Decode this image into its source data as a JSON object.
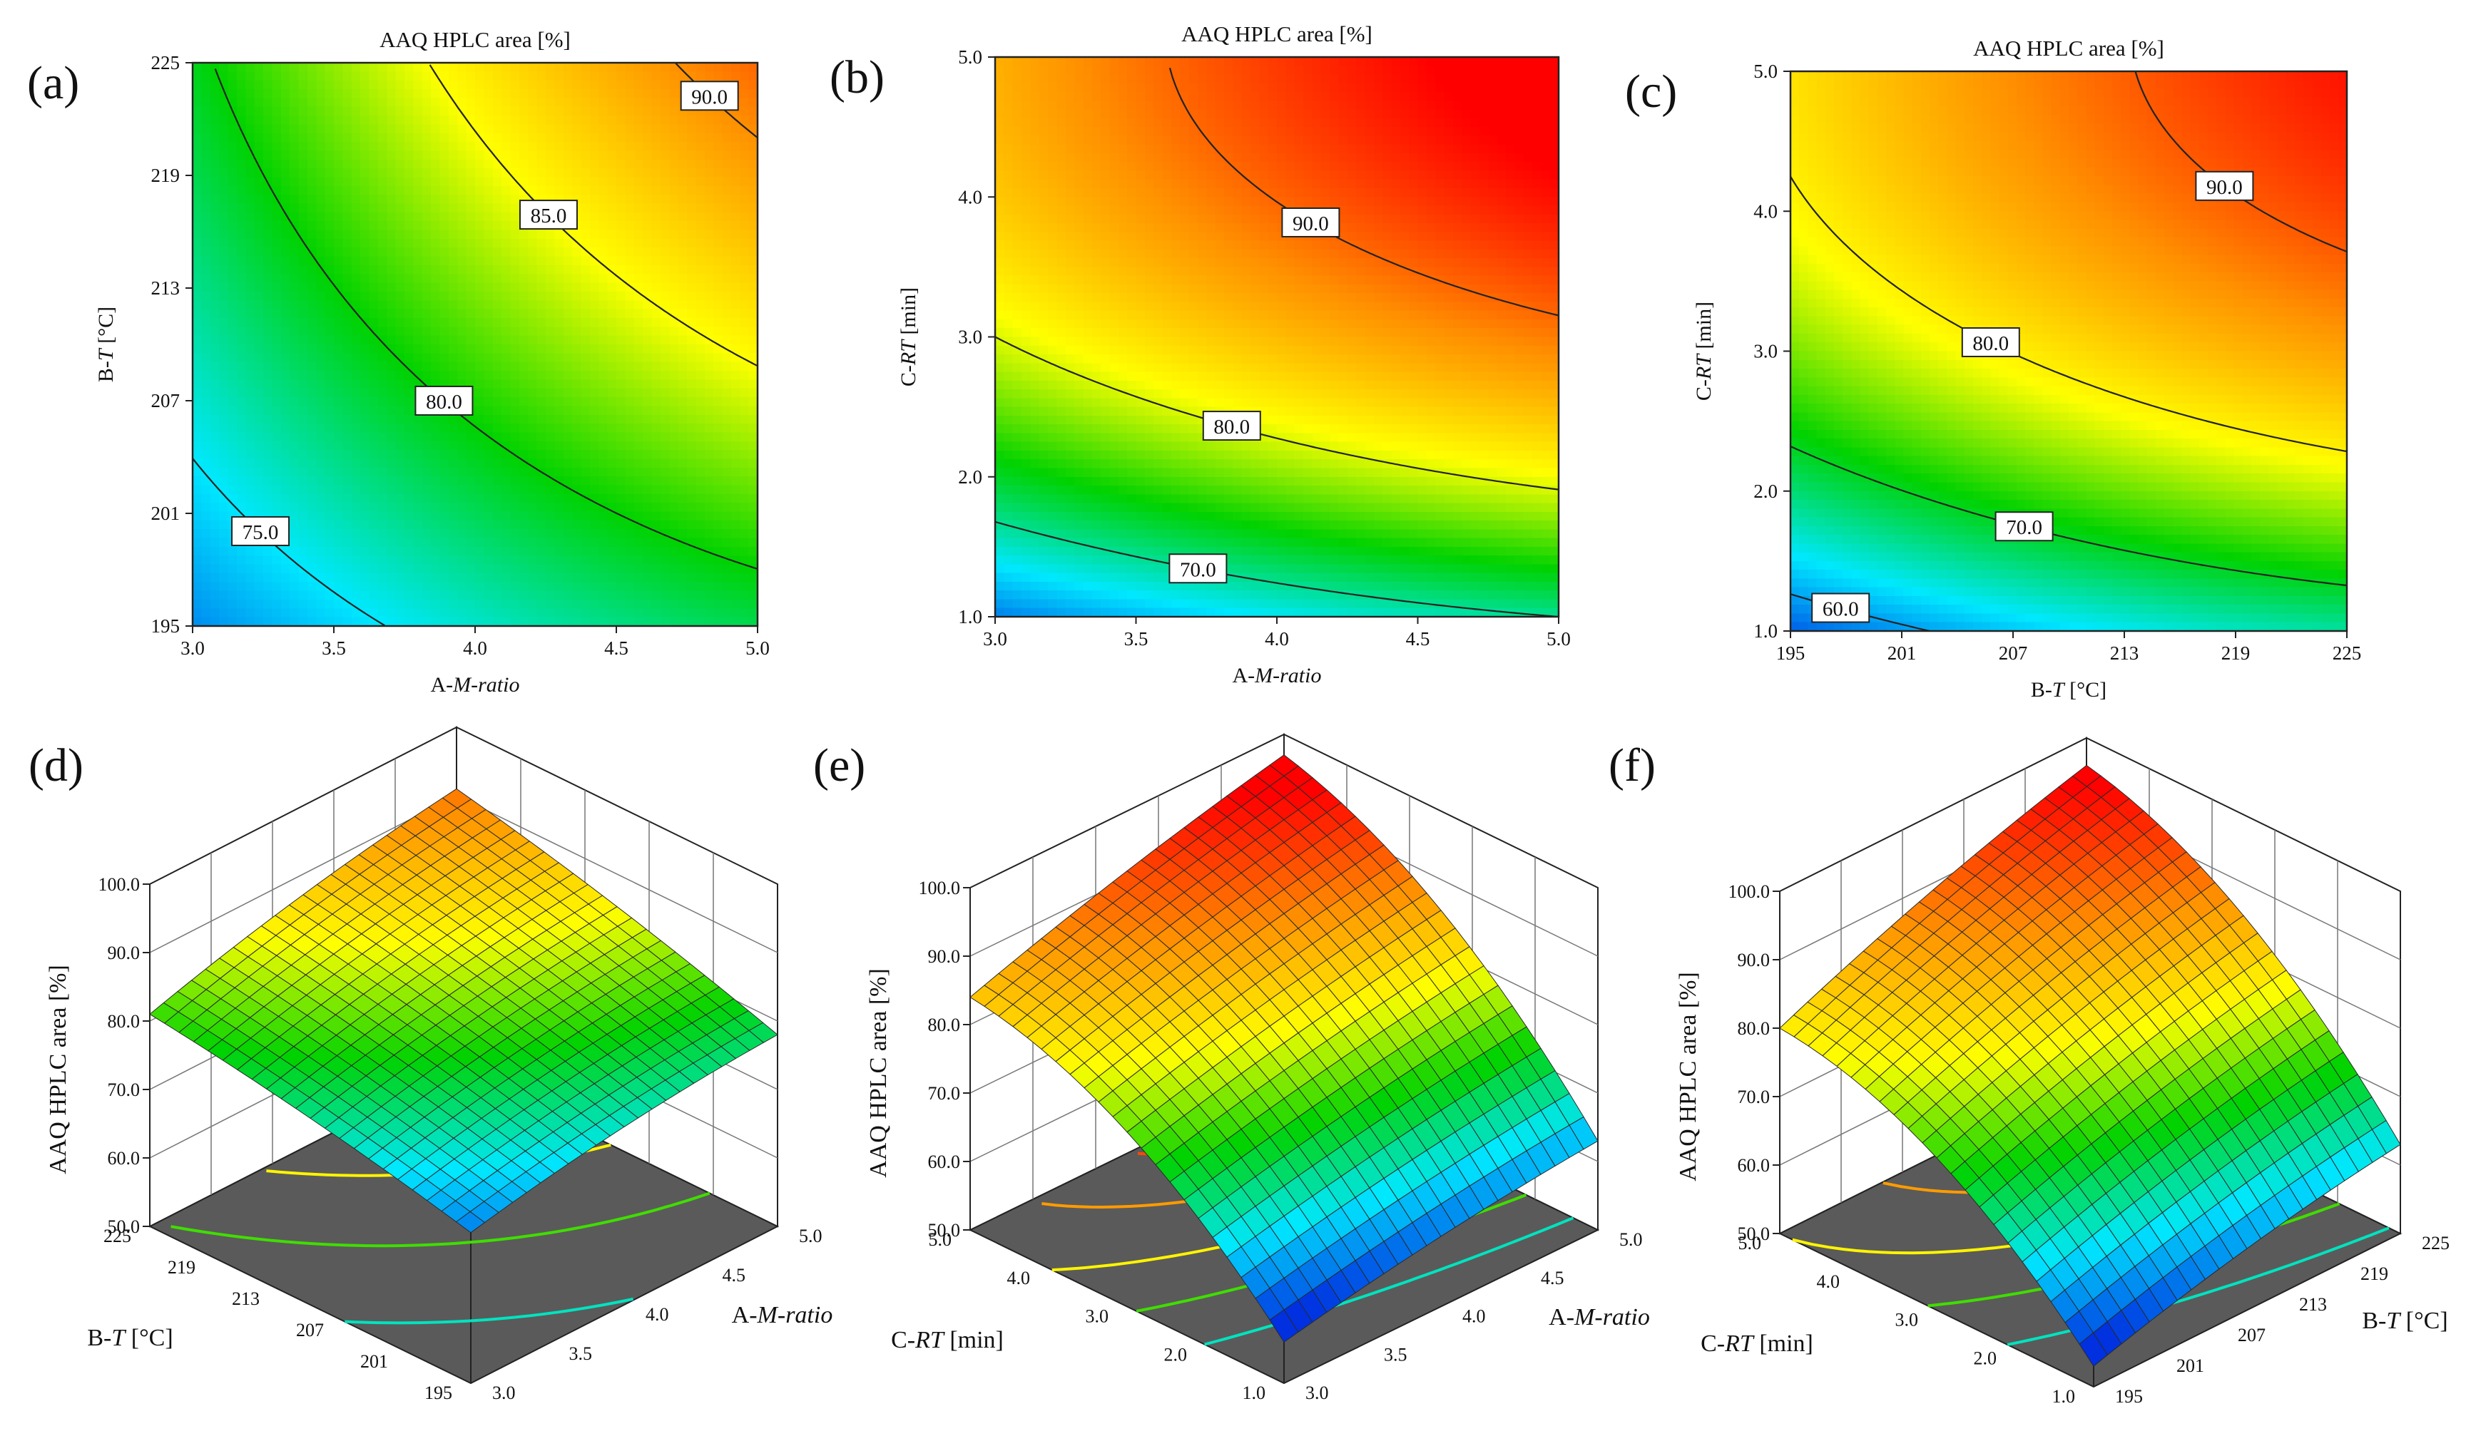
{
  "figure": {
    "colors": {
      "low": "#0030e0",
      "cyan": "#00e8ff",
      "green": "#00d200",
      "yellow": "#ffff00",
      "orange": "#ff9000",
      "red": "#ff0000",
      "floor": "#5a5a5a"
    }
  },
  "chart_data": [
    {
      "panel": "(a)",
      "type": "contour",
      "title": "AAQ HPLC area [%]",
      "xlabel": "A-M-ratio",
      "xlabel_prefix": "A-",
      "xlabel_var": "M-ratio",
      "xlabel_unit": "",
      "ylabel": "B-T [°C]",
      "ylabel_prefix": "B-",
      "ylabel_var": "T",
      "ylabel_unit": " [°C]",
      "xlim": [
        3.0,
        5.0
      ],
      "ylim": [
        195,
        225
      ],
      "xticks": [
        "3.0",
        "3.5",
        "4.0",
        "4.5",
        "5.0"
      ],
      "yticks": [
        "195",
        "201",
        "207",
        "213",
        "219",
        "225"
      ],
      "contours": [
        {
          "level": 75.0,
          "label": "75.0"
        },
        {
          "level": 80.0,
          "label": "80.0"
        },
        {
          "level": 85.0,
          "label": "85.0"
        },
        {
          "level": 90.0,
          "label": "90.0"
        }
      ],
      "color_range": [
        70,
        95
      ]
    },
    {
      "panel": "(b)",
      "type": "contour",
      "title": "AAQ HPLC area [%]",
      "xlabel": "A-M-ratio",
      "xlabel_prefix": "A-",
      "xlabel_var": "M-ratio",
      "xlabel_unit": "",
      "ylabel": "C-RT [min]",
      "ylabel_prefix": "C-",
      "ylabel_var": "RT",
      "ylabel_unit": " [min]",
      "xlim": [
        3.0,
        5.0
      ],
      "ylim": [
        1.0,
        5.0
      ],
      "xticks": [
        "3.0",
        "3.5",
        "4.0",
        "4.5",
        "5.0"
      ],
      "yticks": [
        "1.0",
        "2.0",
        "3.0",
        "4.0",
        "5.0"
      ],
      "contours": [
        {
          "level": 70.0,
          "label": "70.0"
        },
        {
          "level": 80.0,
          "label": "80.0"
        },
        {
          "level": 90.0,
          "label": "90.0"
        }
      ],
      "color_range": [
        60,
        95
      ]
    },
    {
      "panel": "(c)",
      "type": "contour",
      "title": "AAQ HPLC area [%]",
      "xlabel": "B-T [°C]",
      "xlabel_prefix": "B-",
      "xlabel_var": "T",
      "xlabel_unit": " [°C]",
      "ylabel": "C-RT [min]",
      "ylabel_prefix": "C-",
      "ylabel_var": "RT",
      "ylabel_unit": " [min]",
      "xlim": [
        195,
        225
      ],
      "ylim": [
        1.0,
        5.0
      ],
      "xticks": [
        "195",
        "201",
        "207",
        "213",
        "219",
        "225"
      ],
      "yticks": [
        "1.0",
        "2.0",
        "3.0",
        "4.0",
        "5.0"
      ],
      "contours": [
        {
          "level": 60.0,
          "label": "60.0"
        },
        {
          "level": 70.0,
          "label": "70.0"
        },
        {
          "level": 80.0,
          "label": "80.0"
        },
        {
          "level": 90.0,
          "label": "90.0"
        }
      ],
      "color_range": [
        55,
        95
      ]
    },
    {
      "panel": "(d)",
      "type": "surface3d",
      "zlabel": "AAQ HPLC area [%]",
      "zticks": [
        "50.0",
        "60.0",
        "70.0",
        "80.0",
        "90.0",
        "100.0"
      ],
      "zlim": [
        50,
        100
      ],
      "xlabel": "A-M-ratio",
      "xlabel_prefix": "A-",
      "xlabel_var": "M-ratio",
      "xlabel_unit": "",
      "ylabel": "B-T [°C]",
      "ylabel_prefix": "B-",
      "ylabel_var": "T",
      "ylabel_unit": " [°C]",
      "xticks": [
        "3.0",
        "3.5",
        "4.0",
        "4.5",
        "5.0"
      ],
      "yticks": [
        "195",
        "201",
        "207",
        "213",
        "219",
        "225"
      ],
      "surface_range": [
        70,
        95
      ]
    },
    {
      "panel": "(e)",
      "type": "surface3d",
      "zlabel": "AAQ HPLC area [%]",
      "zticks": [
        "50.0",
        "60.0",
        "70.0",
        "80.0",
        "90.0",
        "100.0"
      ],
      "zlim": [
        50,
        100
      ],
      "xlabel": "A-M-ratio",
      "xlabel_prefix": "A-",
      "xlabel_var": "M-ratio",
      "xlabel_unit": "",
      "ylabel": "C-RT [min]",
      "ylabel_prefix": "C-",
      "ylabel_var": "RT",
      "ylabel_unit": " [min]",
      "xticks": [
        "3.0",
        "3.5",
        "4.0",
        "4.5",
        "5.0"
      ],
      "yticks": [
        "1.0",
        "2.0",
        "3.0",
        "4.0",
        "5.0"
      ],
      "surface_range": [
        58,
        95
      ]
    },
    {
      "panel": "(f)",
      "type": "surface3d",
      "zlabel": "AAQ HPLC area [%]",
      "zticks": [
        "50.0",
        "60.0",
        "70.0",
        "80.0",
        "90.0",
        "100.0"
      ],
      "zlim": [
        50,
        100
      ],
      "xlabel": "B-T [°C]",
      "xlabel_prefix": "B-",
      "xlabel_var": "T",
      "xlabel_unit": " [°C]",
      "ylabel": "C-RT [min]",
      "ylabel_prefix": "C-",
      "ylabel_var": "RT",
      "ylabel_unit": " [min]",
      "xticks": [
        "195",
        "201",
        "207",
        "213",
        "219",
        "225"
      ],
      "yticks": [
        "1.0",
        "2.0",
        "3.0",
        "4.0",
        "5.0"
      ],
      "surface_range": [
        55,
        95
      ]
    }
  ]
}
